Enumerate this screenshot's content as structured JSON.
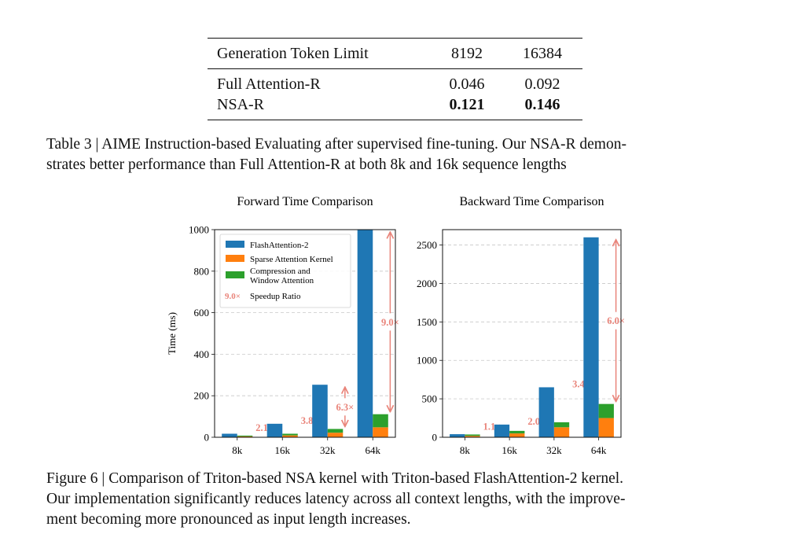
{
  "table": {
    "headers": [
      "Generation Token Limit",
      "8192",
      "16384"
    ],
    "rows": [
      {
        "label": "Full Attention-R",
        "v8192": "0.046",
        "v16384": "0.092",
        "bold": false
      },
      {
        "label": "NSA-R",
        "v8192": "0.121",
        "v16384": "0.146",
        "bold": true
      }
    ],
    "caption": "Table 3 | AIME Instruction-based Evaluating after supervised fine-tuning. Our NSA-R demon-\nstrates better performance than Full Attention-R at both 8k and 16k sequence lengths"
  },
  "figure": {
    "caption": "Figure 6 | Comparison of Triton-based NSA kernel with Triton-based FlashAttention-2 kernel.\nOur implementation significantly reduces latency across all context lengths, with the improve-\nment becoming more pronounced as input length increases."
  },
  "colors": {
    "flash": "#1f77b4",
    "sparse": "#ff7f0e",
    "comp": "#2ca02c",
    "speedup": "#e9847a"
  },
  "chart_data": [
    {
      "type": "bar",
      "title": "Forward Time Comparison",
      "ylabel": "Time (ms)",
      "xlabel": "",
      "categories": [
        "8k",
        "16k",
        "32k",
        "64k"
      ],
      "ylim": [
        0,
        1000
      ],
      "yticks": [
        0,
        200,
        400,
        600,
        800,
        1000
      ],
      "grid": true,
      "legend": {
        "position": "top-left",
        "entries": [
          {
            "label": "FlashAttention-2",
            "color_key": "flash"
          },
          {
            "label": "Sparse Attention Kernel",
            "color_key": "sparse"
          },
          {
            "label": "Compression and\nWindow Attention",
            "color_key": "comp"
          },
          {
            "label": "Speedup Ratio",
            "marker": "9.0×"
          }
        ]
      },
      "series": [
        {
          "name": "FlashAttention-2",
          "values": [
            17,
            65,
            253,
            1000
          ]
        },
        {
          "name": "Sparse Attention Kernel",
          "values": [
            4,
            9,
            22,
            48
          ],
          "stack": "nsa"
        },
        {
          "name": "Compression and Window Attention",
          "values": [
            4,
            8,
            18,
            63
          ],
          "stack": "nsa"
        }
      ],
      "speedup": [
        "2.1×",
        "3.8×",
        "6.3×",
        "9.0×"
      ]
    },
    {
      "type": "bar",
      "title": "Backward Time Comparison",
      "ylabel": "",
      "xlabel": "",
      "categories": [
        "8k",
        "16k",
        "32k",
        "64k"
      ],
      "ylim": [
        0,
        2700
      ],
      "yticks": [
        0,
        500,
        1000,
        1500,
        2000,
        2500
      ],
      "grid": true,
      "series": [
        {
          "name": "FlashAttention-2",
          "values": [
            40,
            165,
            650,
            2600
          ]
        },
        {
          "name": "Sparse Attention Kernel",
          "values": [
            18,
            50,
            130,
            250
          ],
          "stack": "nsa"
        },
        {
          "name": "Compression and Window Attention",
          "values": [
            18,
            33,
            65,
            183
          ],
          "stack": "nsa"
        }
      ],
      "speedup": [
        "1.1×",
        "2.0×",
        "3.4×",
        "6.0×"
      ]
    }
  ]
}
